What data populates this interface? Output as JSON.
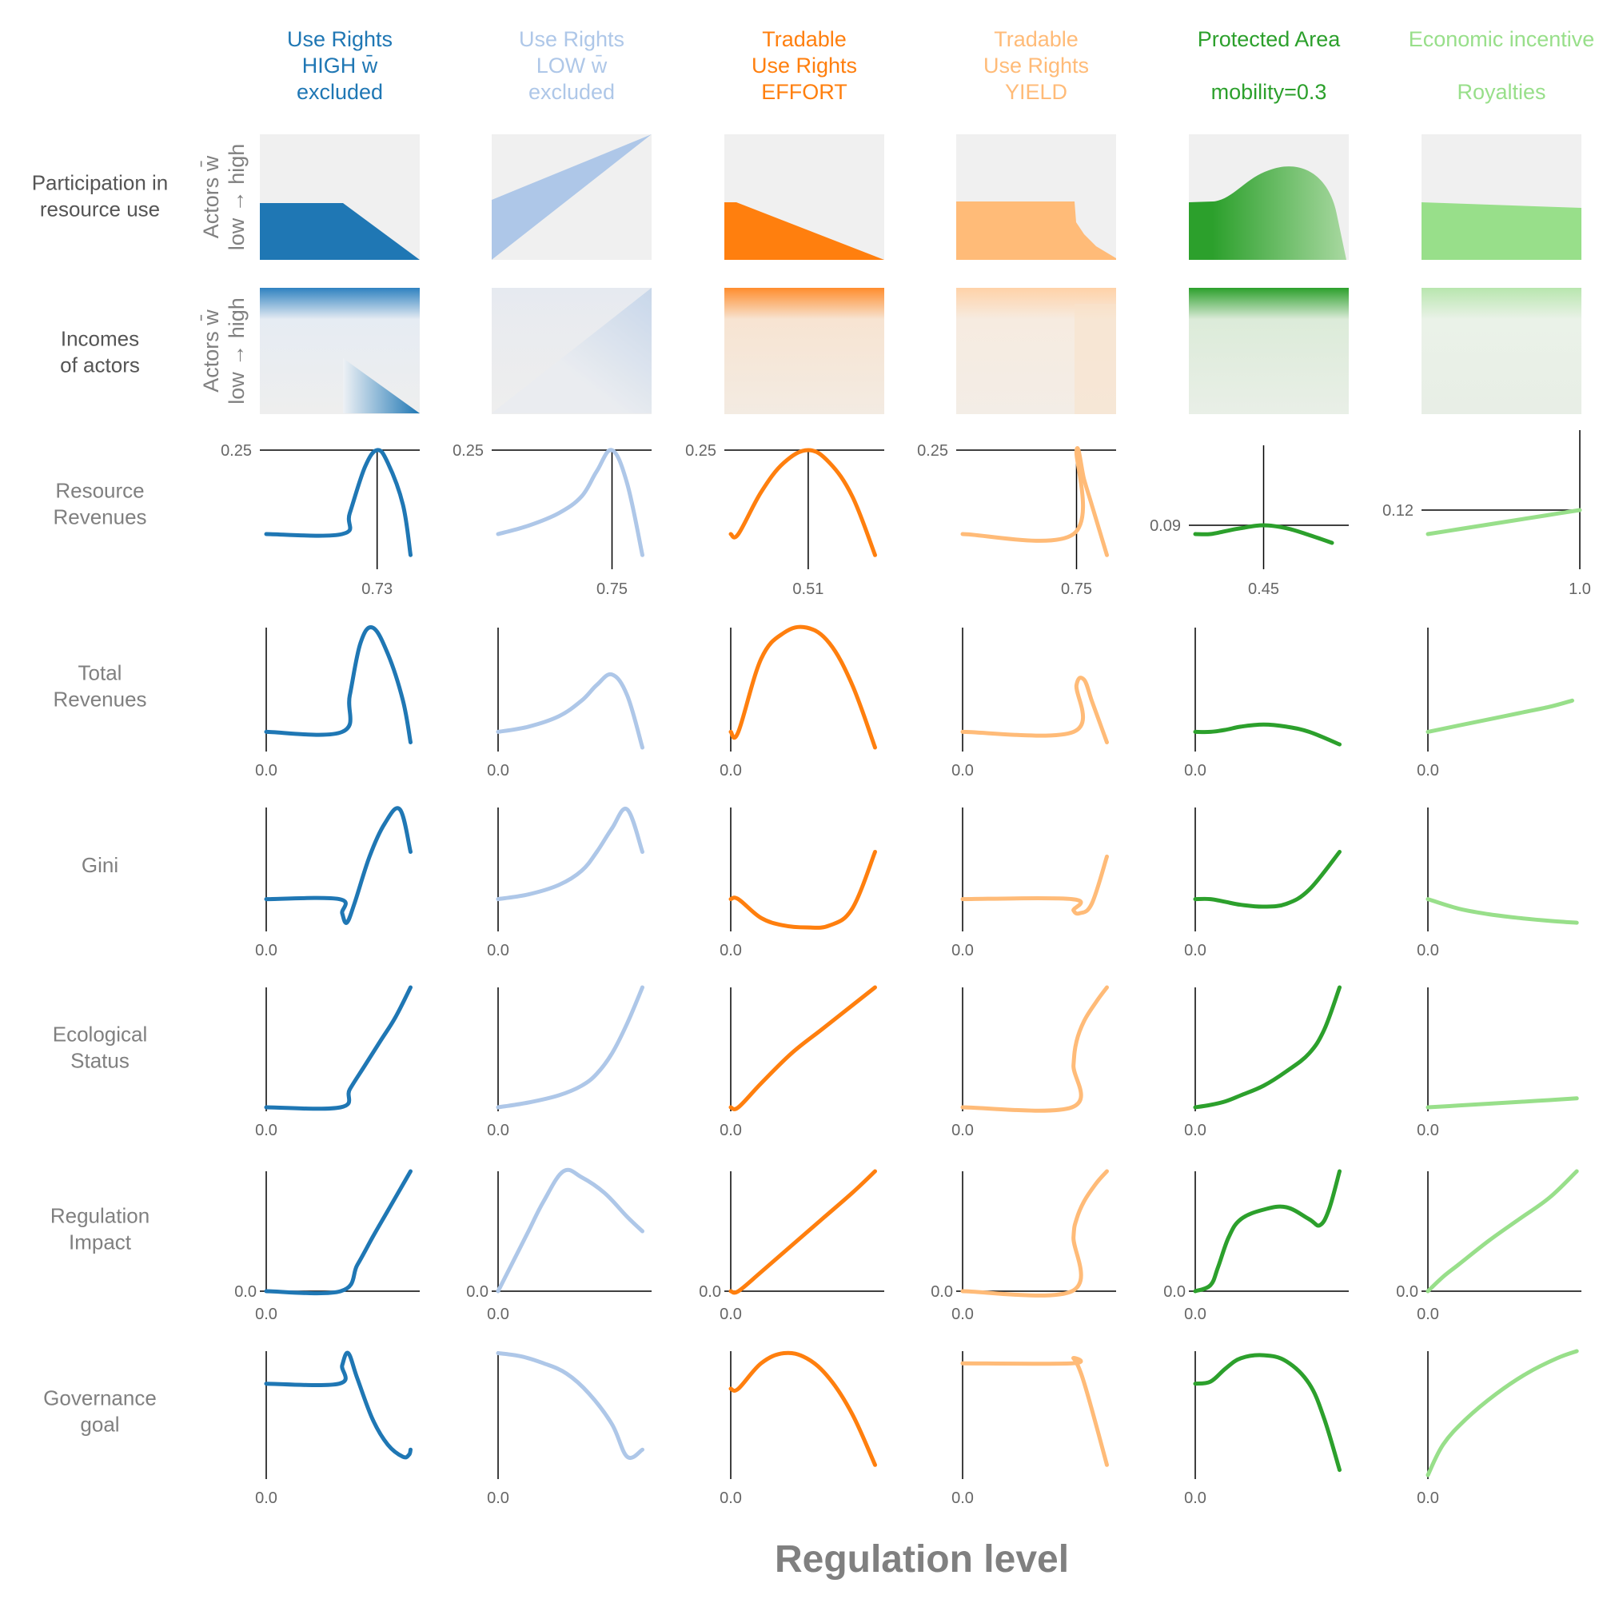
{
  "colors": {
    "UR_high": "#1f77b4",
    "UR_low": "#aec7e8",
    "TUR_effort": "#ff7f0e",
    "TUR_yield": "#ffbb78",
    "PA": "#2ca02c",
    "EI": "#98df8a",
    "axis": "#000000",
    "panel_bg": "#f0f0f0"
  },
  "columns": [
    {
      "id": "ur_high",
      "title": [
        "Use Rights",
        "HIGH w̄",
        "excluded"
      ],
      "color": "#1f77b4"
    },
    {
      "id": "ur_low",
      "title": [
        "Use Rights",
        "LOW w̄",
        "excluded"
      ],
      "color": "#aec7e8"
    },
    {
      "id": "tur_effort",
      "title": [
        "Tradable",
        "Use Rights",
        "EFFORT"
      ],
      "color": "#ff7f0e"
    },
    {
      "id": "tur_yield",
      "title": [
        "Tradable",
        "Use Rights",
        "YIELD"
      ],
      "color": "#ffbb78"
    },
    {
      "id": "protected_area",
      "title": [
        "Protected Area",
        "",
        "mobility=0.3"
      ],
      "color": "#2ca02c"
    },
    {
      "id": "economic_incentive",
      "title": [
        "Economic incentive",
        "",
        "Royalties"
      ],
      "color": "#98df8a"
    }
  ],
  "rows": [
    {
      "id": "participation",
      "label": [
        "Participation in",
        "resource use"
      ],
      "ylabel": [
        "Actors w̄",
        "low → high"
      ]
    },
    {
      "id": "incomes",
      "label": [
        "Incomes",
        "of actors"
      ],
      "ylabel": [
        "Actors w̄",
        "low → high"
      ]
    },
    {
      "id": "resource_revenues",
      "label": [
        "Resource",
        "Revenues"
      ]
    },
    {
      "id": "total_revenues",
      "label": [
        "Total",
        "Revenues"
      ]
    },
    {
      "id": "gini",
      "label": [
        "Gini"
      ]
    },
    {
      "id": "ecological_status",
      "label": [
        "Ecological",
        "Status"
      ]
    },
    {
      "id": "regulation_impact",
      "label": [
        "Regulation",
        "Impact"
      ]
    },
    {
      "id": "governance_goal",
      "label": [
        "Governance",
        "goal"
      ]
    }
  ],
  "xlabel": "Regulation level",
  "chart_data": {
    "type": "line",
    "xlabel": "Regulation level",
    "x_domain": [
      0,
      1
    ],
    "resource_revenues": {
      "ylim": [
        0.0,
        0.25
      ],
      "ur_high": {
        "optimum_x": "0.73",
        "max_y": "0.25",
        "x": [
          0,
          0.5,
          0.55,
          0.65,
          0.73,
          0.8,
          0.9,
          0.95
        ],
        "y": [
          0.05,
          0.05,
          0.1,
          0.21,
          0.25,
          0.22,
          0.12,
          0.0
        ]
      },
      "ur_low": {
        "optimum_x": "0.75",
        "max_y": "0.25",
        "x": [
          0,
          0.2,
          0.4,
          0.55,
          0.65,
          0.75,
          0.85,
          0.95
        ],
        "y": [
          0.05,
          0.07,
          0.1,
          0.14,
          0.2,
          0.25,
          0.17,
          0.0
        ]
      },
      "tur_effort": {
        "optimum_x": "0.51",
        "max_y": "0.25",
        "x": [
          0,
          0.05,
          0.2,
          0.35,
          0.51,
          0.65,
          0.8,
          0.95
        ],
        "y": [
          0.05,
          0.05,
          0.15,
          0.22,
          0.25,
          0.22,
          0.14,
          0.0
        ]
      },
      "tur_yield": {
        "optimum_x": "0.75",
        "max_y": "0.25",
        "x": [
          0,
          0.73,
          0.75,
          0.8,
          0.85,
          0.9,
          0.95
        ],
        "y": [
          0.05,
          0.05,
          0.25,
          0.18,
          0.12,
          0.06,
          0.0
        ]
      },
      "protected_area": {
        "optimum_x": "0.45",
        "max_y": "0.09",
        "x": [
          0,
          0.1,
          0.2,
          0.3,
          0.45,
          0.6,
          0.75,
          0.9
        ],
        "y": [
          0.045,
          0.045,
          0.06,
          0.075,
          0.09,
          0.075,
          0.04,
          0.0
        ]
      },
      "economic_incentive": {
        "optimum_x": "1.0",
        "max_y": "0.12",
        "x": [
          0,
          0.2,
          0.4,
          0.6,
          0.8,
          1.0
        ],
        "y": [
          0.045,
          0.06,
          0.075,
          0.09,
          0.105,
          0.12
        ]
      }
    },
    "total_revenues": {
      "ur_high": {
        "x": [
          0,
          0.5,
          0.55,
          0.62,
          0.7,
          0.8,
          0.9,
          0.95
        ],
        "y": [
          0.0,
          0.0,
          0.35,
          0.85,
          1.0,
          0.75,
          0.3,
          -0.1
        ]
      },
      "ur_low": {
        "x": [
          0,
          0.2,
          0.4,
          0.55,
          0.65,
          0.75,
          0.85,
          0.95
        ],
        "y": [
          0.0,
          0.05,
          0.15,
          0.3,
          0.45,
          0.55,
          0.35,
          -0.15
        ]
      },
      "tur_effort": {
        "x": [
          0,
          0.05,
          0.2,
          0.35,
          0.5,
          0.65,
          0.8,
          0.95
        ],
        "y": [
          0.0,
          0.0,
          0.7,
          0.95,
          1.0,
          0.85,
          0.45,
          -0.15
        ]
      },
      "tur_yield": {
        "x": [
          0,
          0.73,
          0.75,
          0.8,
          0.85,
          0.9,
          0.95
        ],
        "y": [
          0.0,
          0.0,
          0.45,
          0.5,
          0.3,
          0.1,
          -0.1
        ]
      },
      "protected_area": {
        "x": [
          0,
          0.1,
          0.2,
          0.3,
          0.45,
          0.6,
          0.75,
          0.95
        ],
        "y": [
          0.0,
          0.0,
          0.02,
          0.05,
          0.07,
          0.05,
          0.0,
          -0.12
        ]
      },
      "economic_incentive": {
        "x": [
          0,
          0.2,
          0.4,
          0.6,
          0.8,
          0.95
        ],
        "y": [
          0.0,
          0.06,
          0.12,
          0.18,
          0.24,
          0.3
        ]
      }
    },
    "gini": {
      "ur_high": {
        "x": [
          0,
          0.48,
          0.5,
          0.53,
          0.58,
          0.68,
          0.78,
          0.88,
          0.95
        ],
        "y": [
          0.0,
          0.0,
          -0.15,
          -0.25,
          -0.05,
          0.45,
          0.8,
          0.95,
          0.5
        ]
      },
      "ur_low": {
        "x": [
          0,
          0.2,
          0.4,
          0.55,
          0.65,
          0.75,
          0.85,
          0.95
        ],
        "y": [
          0.0,
          0.05,
          0.15,
          0.3,
          0.5,
          0.75,
          0.95,
          0.5
        ]
      },
      "tur_effort": {
        "x": [
          0,
          0.05,
          0.2,
          0.35,
          0.5,
          0.65,
          0.8,
          0.95
        ],
        "y": [
          0.0,
          0.0,
          -0.2,
          -0.28,
          -0.3,
          -0.28,
          -0.1,
          0.5
        ]
      },
      "tur_yield": {
        "x": [
          0,
          0.72,
          0.73,
          0.77,
          0.85,
          0.95
        ],
        "y": [
          0.0,
          0.0,
          -0.12,
          -0.15,
          -0.05,
          0.45
        ]
      },
      "protected_area": {
        "x": [
          0,
          0.1,
          0.2,
          0.3,
          0.45,
          0.6,
          0.75,
          0.95
        ],
        "y": [
          0.0,
          0.0,
          -0.03,
          -0.06,
          -0.08,
          -0.05,
          0.1,
          0.5
        ]
      },
      "economic_incentive": {
        "x": [
          0,
          0.2,
          0.4,
          0.6,
          0.8,
          0.98
        ],
        "y": [
          0.0,
          -0.1,
          -0.16,
          -0.2,
          -0.23,
          -0.25
        ]
      }
    },
    "ecological_status": {
      "ur_high": {
        "x": [
          0,
          0.49,
          0.55,
          0.65,
          0.75,
          0.85,
          0.95
        ],
        "y": [
          0.0,
          0.0,
          0.15,
          0.35,
          0.55,
          0.75,
          1.0
        ]
      },
      "ur_low": {
        "x": [
          0,
          0.2,
          0.4,
          0.55,
          0.65,
          0.75,
          0.85,
          0.95
        ],
        "y": [
          0.0,
          0.04,
          0.1,
          0.18,
          0.28,
          0.45,
          0.7,
          1.0
        ]
      },
      "tur_effort": {
        "x": [
          0,
          0.05,
          0.2,
          0.4,
          0.6,
          0.8,
          0.95
        ],
        "y": [
          0.0,
          0.0,
          0.2,
          0.45,
          0.65,
          0.85,
          1.0
        ]
      },
      "tur_yield": {
        "x": [
          0,
          0.72,
          0.73,
          0.75,
          0.8,
          0.88,
          0.95
        ],
        "y": [
          0.0,
          0.0,
          0.35,
          0.55,
          0.72,
          0.88,
          1.0
        ]
      },
      "protected_area": {
        "x": [
          0,
          0.1,
          0.2,
          0.3,
          0.45,
          0.6,
          0.75,
          0.85,
          0.95
        ],
        "y": [
          0.0,
          0.02,
          0.05,
          0.1,
          0.18,
          0.3,
          0.45,
          0.65,
          1.0
        ]
      },
      "economic_incentive": {
        "x": [
          0,
          0.2,
          0.4,
          0.6,
          0.8,
          0.98
        ],
        "y": [
          0.0,
          0.015,
          0.03,
          0.045,
          0.06,
          0.075
        ]
      }
    },
    "regulation_impact": {
      "ur_high": {
        "x": [
          0,
          0.49,
          0.6,
          0.7,
          0.8,
          0.9,
          0.95
        ],
        "y": [
          0.0,
          0.0,
          0.22,
          0.45,
          0.67,
          0.89,
          1.0
        ]
      },
      "ur_low": {
        "x": [
          0,
          0.1,
          0.2,
          0.3,
          0.43,
          0.55,
          0.7,
          0.85,
          0.95
        ],
        "y": [
          0.0,
          0.25,
          0.5,
          0.75,
          1.0,
          0.95,
          0.82,
          0.62,
          0.5
        ]
      },
      "tur_effort": {
        "x": [
          0,
          0.05,
          0.2,
          0.4,
          0.6,
          0.8,
          0.95
        ],
        "y": [
          0.0,
          0.0,
          0.16,
          0.38,
          0.6,
          0.82,
          1.0
        ]
      },
      "tur_yield": {
        "x": [
          0,
          0.72,
          0.73,
          0.75,
          0.8,
          0.88,
          0.95
        ],
        "y": [
          0.0,
          0.0,
          0.45,
          0.6,
          0.75,
          0.9,
          1.0
        ]
      },
      "protected_area": {
        "x": [
          0,
          0.1,
          0.15,
          0.22,
          0.3,
          0.45,
          0.6,
          0.75,
          0.82,
          0.88,
          0.95
        ],
        "y": [
          0.0,
          0.05,
          0.2,
          0.45,
          0.6,
          0.68,
          0.7,
          0.6,
          0.55,
          0.68,
          1.0
        ]
      },
      "economic_incentive": {
        "x": [
          0,
          0.1,
          0.2,
          0.4,
          0.6,
          0.8,
          0.98
        ],
        "y": [
          0.0,
          0.12,
          0.22,
          0.42,
          0.6,
          0.78,
          1.0
        ]
      }
    },
    "governance_goal": {
      "ur_high": {
        "x": [
          0,
          0.48,
          0.5,
          0.54,
          0.6,
          0.7,
          0.8,
          0.9,
          0.94,
          0.95
        ],
        "y": [
          0.0,
          0.0,
          0.18,
          0.3,
          0.05,
          -0.35,
          -0.6,
          -0.72,
          -0.7,
          -0.65
        ]
      },
      "ur_low": {
        "x": [
          0,
          0.15,
          0.3,
          0.45,
          0.6,
          0.75,
          0.85,
          0.95
        ],
        "y": [
          0.3,
          0.27,
          0.2,
          0.1,
          -0.1,
          -0.4,
          -0.72,
          -0.65
        ]
      },
      "tur_effort": {
        "x": [
          0,
          0.05,
          0.2,
          0.35,
          0.5,
          0.65,
          0.8,
          0.95
        ],
        "y": [
          -0.05,
          -0.05,
          0.2,
          0.3,
          0.25,
          0.05,
          -0.3,
          -0.8
        ]
      },
      "tur_yield": {
        "x": [
          0,
          0.72,
          0.73,
          0.78,
          0.85,
          0.95
        ],
        "y": [
          0.2,
          0.2,
          0.25,
          0.1,
          -0.25,
          -0.8
        ]
      },
      "protected_area": {
        "x": [
          0,
          0.1,
          0.2,
          0.3,
          0.45,
          0.6,
          0.75,
          0.85,
          0.95
        ],
        "y": [
          0.0,
          0.02,
          0.15,
          0.25,
          0.28,
          0.22,
          0.0,
          -0.35,
          -0.85
        ]
      },
      "economic_incentive": {
        "x": [
          0,
          0.1,
          0.25,
          0.45,
          0.65,
          0.85,
          0.98
        ],
        "y": [
          -0.9,
          -0.6,
          -0.35,
          -0.1,
          0.1,
          0.25,
          0.32
        ]
      }
    },
    "ticks": {
      "x_zero_label": "0.0",
      "y_zero_label": "0.0",
      "revenue_y_labels": [
        "0.25",
        "0.25",
        "0.25",
        "0.25",
        "0.09",
        "0.12"
      ],
      "revenue_x_labels": [
        "0.73",
        "0.75",
        "0.51",
        "0.75",
        "0.45",
        "1.0"
      ]
    }
  }
}
